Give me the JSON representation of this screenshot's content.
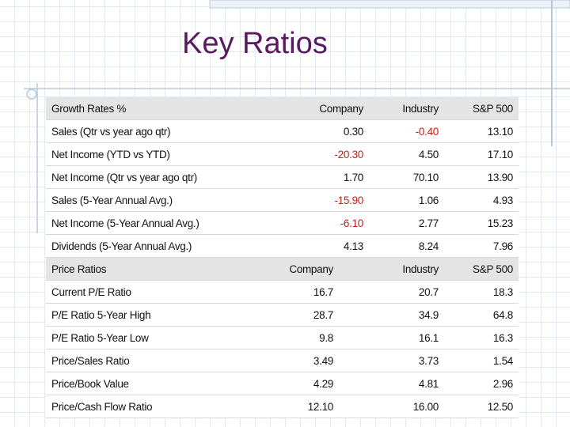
{
  "title": "Key Ratios",
  "growth_table": {
    "header": [
      "Growth Rates %",
      "Company",
      "Industry",
      "S&P 500"
    ],
    "rows": [
      [
        "Sales (Qtr vs year ago qtr)",
        "0.30",
        "-0.40",
        "13.10"
      ],
      [
        "Net Income (YTD vs YTD)",
        "-20.30",
        "4.50",
        "17.10"
      ],
      [
        "Net Income (Qtr vs year ago qtr)",
        "1.70",
        "70.10",
        "13.90"
      ],
      [
        "Sales (5-Year Annual Avg.)",
        "-15.90",
        "1.06",
        "4.93"
      ],
      [
        "Net Income (5-Year Annual Avg.)",
        "-6.10",
        "2.77",
        "15.23"
      ],
      [
        "Dividends (5-Year Annual Avg.)",
        "4.13",
        "8.24",
        "7.96"
      ]
    ]
  },
  "price_table": {
    "header": [
      "Price Ratios",
      "Company",
      "Industry",
      "S&P 500"
    ],
    "rows": [
      [
        "Current P/E Ratio",
        "16.7",
        "20.7",
        "18.3"
      ],
      [
        "P/E Ratio 5-Year High",
        "28.7",
        "34.9",
        "64.8"
      ],
      [
        "P/E Ratio 5-Year Low",
        "9.8",
        "16.1",
        "16.3"
      ],
      [
        "Price/Sales Ratio",
        "3.49",
        "3.73",
        "1.54"
      ],
      [
        "Price/Book Value",
        "4.29",
        "4.81",
        "2.96"
      ],
      [
        "Price/Cash Flow Ratio",
        "12.10",
        "16.00",
        "12.50"
      ]
    ]
  }
}
